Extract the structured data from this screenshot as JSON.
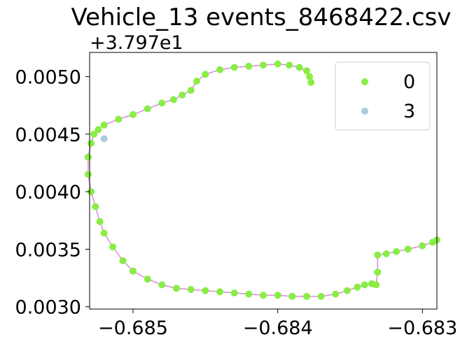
{
  "chart_data": {
    "type": "scatter",
    "title": "Vehicle_13 events_8468422.csv",
    "xlabel": "",
    "ylabel": "",
    "y_offset_label": "+3.797e1",
    "xlim": [
      -0.6853,
      -0.6829
    ],
    "ylim": [
      0.00298,
      0.00521
    ],
    "x_ticks": [
      {
        "value": -0.685,
        "label": "−0.685"
      },
      {
        "value": -0.684,
        "label": "−0.684"
      },
      {
        "value": -0.683,
        "label": "−0.683"
      }
    ],
    "y_ticks": [
      {
        "value": 0.003,
        "label": "0.0030"
      },
      {
        "value": 0.0035,
        "label": "0.0035"
      },
      {
        "value": 0.004,
        "label": "0.0040"
      },
      {
        "value": 0.0045,
        "label": "0.0045"
      },
      {
        "value": 0.005,
        "label": "0.0050"
      }
    ],
    "grid": false,
    "legend_position": "top-right",
    "line_color": "#dd88dd",
    "series": [
      {
        "name": "0",
        "color": "#88ee44",
        "x": [
          -0.68377,
          -0.68378,
          -0.6838,
          -0.68385,
          -0.68392,
          -0.684,
          -0.6841,
          -0.6842,
          -0.6843,
          -0.6844,
          -0.6845,
          -0.68456,
          -0.6846,
          -0.68466,
          -0.68472,
          -0.6848,
          -0.6849,
          -0.685,
          -0.6851,
          -0.6852,
          -0.68524,
          -0.68527,
          -0.68529,
          -0.68531,
          -0.68531,
          -0.68529,
          -0.68526,
          -0.68523,
          -0.6852,
          -0.68514,
          -0.68507,
          -0.685,
          -0.6849,
          -0.6848,
          -0.6847,
          -0.6846,
          -0.6845,
          -0.6844,
          -0.6843,
          -0.6842,
          -0.6841,
          -0.684,
          -0.6839,
          -0.6838,
          -0.6837,
          -0.6836,
          -0.68352,
          -0.68345,
          -0.6834,
          -0.68335,
          -0.68332,
          -0.68331,
          -0.68331,
          -0.68325,
          -0.68318,
          -0.6831,
          -0.683,
          -0.68293,
          -0.6829
        ],
        "y": [
          0.00495,
          0.005,
          0.00505,
          0.00508,
          0.0051,
          0.00511,
          0.0051,
          0.00509,
          0.00508,
          0.00506,
          0.00502,
          0.00496,
          0.00488,
          0.00484,
          0.0048,
          0.00477,
          0.00472,
          0.00467,
          0.00463,
          0.00458,
          0.00454,
          0.0045,
          0.00442,
          0.0043,
          0.00415,
          0.004,
          0.00387,
          0.00374,
          0.00364,
          0.00352,
          0.0034,
          0.00331,
          0.00324,
          0.00319,
          0.00316,
          0.00315,
          0.00314,
          0.00313,
          0.00312,
          0.00311,
          0.0031,
          0.0031,
          0.00309,
          0.00309,
          0.00309,
          0.00311,
          0.00314,
          0.00317,
          0.00319,
          0.0032,
          0.00319,
          0.0033,
          0.00345,
          0.00346,
          0.00348,
          0.0035,
          0.00353,
          0.00356,
          0.00358
        ]
      },
      {
        "name": "3",
        "color": "#aaccdd",
        "x": [
          -0.6852
        ],
        "y": [
          0.00446
        ]
      }
    ]
  }
}
